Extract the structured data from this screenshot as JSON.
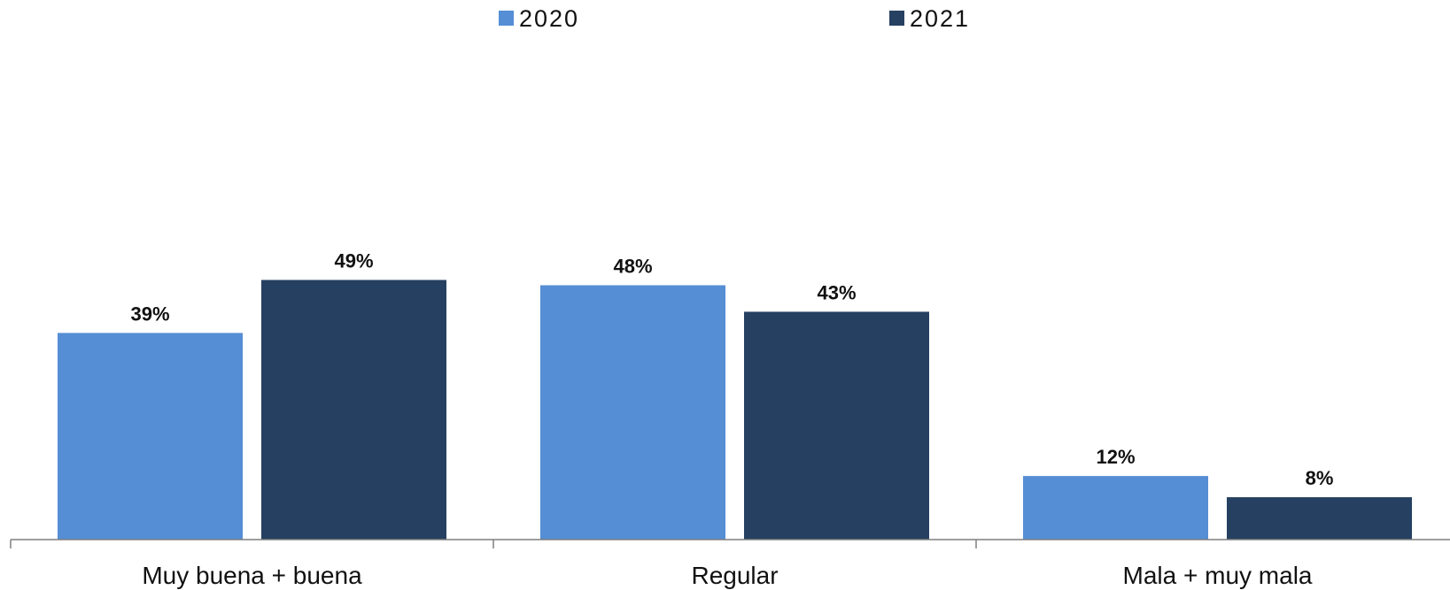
{
  "chart_data": {
    "type": "bar",
    "categories": [
      "Muy buena + buena",
      "Regular",
      "Mala + muy mala"
    ],
    "series": [
      {
        "name": "2020",
        "color": "#558ed5",
        "values": [
          39,
          48,
          12
        ],
        "labels": [
          "39%",
          "48%",
          "12%"
        ]
      },
      {
        "name": "2021",
        "color": "#264061",
        "values": [
          49,
          43,
          8
        ],
        "labels": [
          "49%",
          "43%",
          "8%"
        ]
      }
    ],
    "ylim": [
      0,
      100
    ],
    "grid": false,
    "legend_position": "top-center"
  }
}
